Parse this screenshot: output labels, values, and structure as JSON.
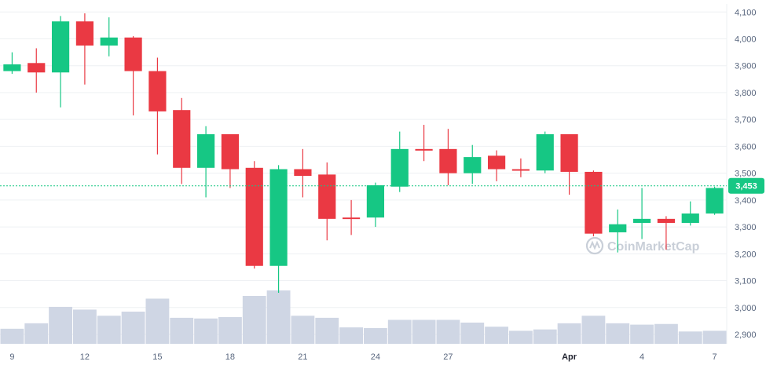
{
  "chart_data": {
    "type": "candlestick",
    "y_axis": {
      "position": "right",
      "ticks": [
        "4,100",
        "4,000",
        "3,900",
        "3,800",
        "3,700",
        "3,600",
        "3,500",
        "3,400",
        "3,300",
        "3,200",
        "3,100",
        "3,000",
        "2,900"
      ],
      "tick_values": [
        4100,
        4000,
        3900,
        3800,
        3700,
        3600,
        3500,
        3400,
        3300,
        3200,
        3100,
        3000,
        2900
      ],
      "range": [
        2865,
        4130
      ]
    },
    "x_axis": {
      "ticks": [
        {
          "label": "9",
          "index": 0,
          "bold": false
        },
        {
          "label": "12",
          "index": 3,
          "bold": false
        },
        {
          "label": "15",
          "index": 6,
          "bold": false
        },
        {
          "label": "18",
          "index": 9,
          "bold": false
        },
        {
          "label": "21",
          "index": 12,
          "bold": false
        },
        {
          "label": "24",
          "index": 15,
          "bold": false
        },
        {
          "label": "27",
          "index": 18,
          "bold": false
        },
        {
          "label": "Apr",
          "index": 23,
          "bold": true
        },
        {
          "label": "4",
          "index": 26,
          "bold": false
        },
        {
          "label": "7",
          "index": 29,
          "bold": false
        }
      ]
    },
    "current_price": {
      "value": 3453,
      "label": "3,453"
    },
    "colors": {
      "up": "#16c784",
      "down": "#ea3943",
      "volume": "#cfd6e4",
      "price_tag": "#16c784"
    },
    "watermark": "CoinMarketCap",
    "candles": [
      {
        "o": 3880,
        "h": 3950,
        "l": 3870,
        "c": 3905
      },
      {
        "o": 3910,
        "h": 3965,
        "l": 3800,
        "c": 3875
      },
      {
        "o": 3875,
        "h": 4085,
        "l": 3745,
        "c": 4065
      },
      {
        "o": 4065,
        "h": 4095,
        "l": 3830,
        "c": 3975
      },
      {
        "o": 3975,
        "h": 4080,
        "l": 3935,
        "c": 4005
      },
      {
        "o": 4005,
        "h": 4010,
        "l": 3715,
        "c": 3880
      },
      {
        "o": 3880,
        "h": 3930,
        "l": 3570,
        "c": 3730
      },
      {
        "o": 3735,
        "h": 3780,
        "l": 3460,
        "c": 3520
      },
      {
        "o": 3520,
        "h": 3675,
        "l": 3410,
        "c": 3645
      },
      {
        "o": 3645,
        "h": 3645,
        "l": 3445,
        "c": 3515
      },
      {
        "o": 3520,
        "h": 3545,
        "l": 3145,
        "c": 3155
      },
      {
        "o": 3155,
        "h": 3530,
        "l": 3055,
        "c": 3515
      },
      {
        "o": 3515,
        "h": 3590,
        "l": 3410,
        "c": 3490
      },
      {
        "o": 3495,
        "h": 3540,
        "l": 3250,
        "c": 3330
      },
      {
        "o": 3335,
        "h": 3400,
        "l": 3270,
        "c": 3330
      },
      {
        "o": 3335,
        "h": 3465,
        "l": 3300,
        "c": 3455
      },
      {
        "o": 3450,
        "h": 3655,
        "l": 3430,
        "c": 3590
      },
      {
        "o": 3590,
        "h": 3680,
        "l": 3545,
        "c": 3585
      },
      {
        "o": 3590,
        "h": 3665,
        "l": 3455,
        "c": 3500
      },
      {
        "o": 3500,
        "h": 3605,
        "l": 3460,
        "c": 3560
      },
      {
        "o": 3565,
        "h": 3585,
        "l": 3470,
        "c": 3515
      },
      {
        "o": 3515,
        "h": 3555,
        "l": 3485,
        "c": 3510
      },
      {
        "o": 3510,
        "h": 3655,
        "l": 3500,
        "c": 3645
      },
      {
        "o": 3645,
        "h": 3645,
        "l": 3420,
        "c": 3505
      },
      {
        "o": 3505,
        "h": 3510,
        "l": 3265,
        "c": 3275
      },
      {
        "o": 3280,
        "h": 3365,
        "l": 3205,
        "c": 3310
      },
      {
        "o": 3315,
        "h": 3445,
        "l": 3255,
        "c": 3330
      },
      {
        "o": 3330,
        "h": 3340,
        "l": 3215,
        "c": 3315
      },
      {
        "o": 3315,
        "h": 3395,
        "l": 3305,
        "c": 3350
      },
      {
        "o": 3350,
        "h": 3450,
        "l": 3345,
        "c": 3445
      }
    ],
    "volumes": [
      22,
      30,
      54,
      50,
      41,
      47,
      66,
      38,
      37,
      39,
      70,
      78,
      41,
      38,
      24,
      23,
      35,
      35,
      35,
      31,
      25,
      19,
      21,
      30,
      41,
      30,
      28,
      29,
      18,
      19
    ]
  }
}
